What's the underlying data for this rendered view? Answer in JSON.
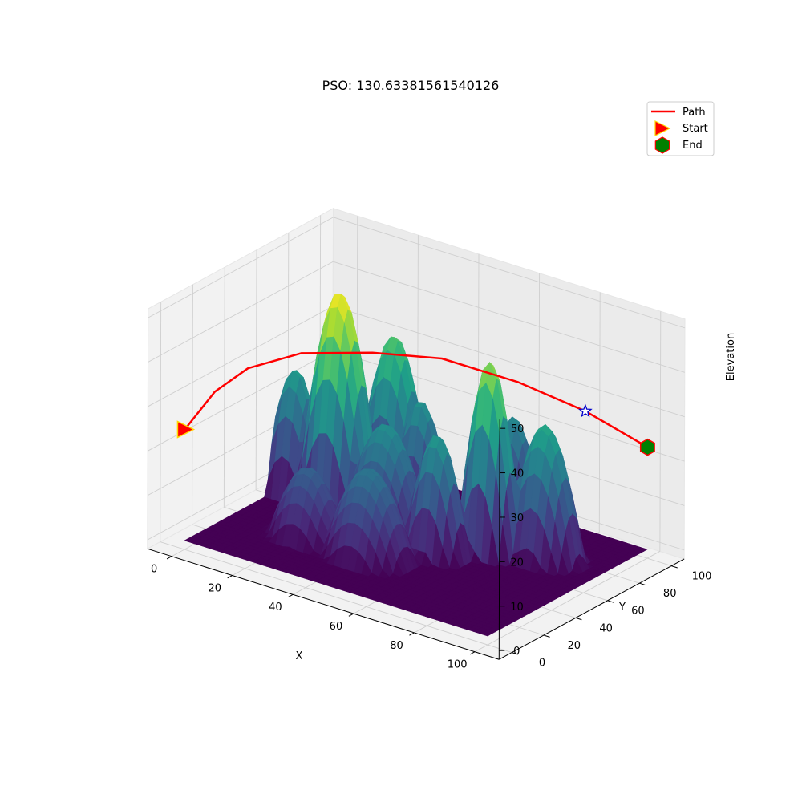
{
  "chart_data": {
    "type": "surface3d",
    "title": "PSO: 130.63381561540126",
    "xlabel": "X",
    "ylabel": "Y",
    "zlabel": "Elevation",
    "xlim": [
      0,
      100
    ],
    "ylim": [
      0,
      100
    ],
    "zlim": [
      0,
      50
    ],
    "x_ticks": [
      0,
      20,
      40,
      60,
      80,
      100
    ],
    "y_ticks": [
      0,
      20,
      40,
      60,
      80,
      100
    ],
    "z_ticks": [
      0,
      10,
      20,
      30,
      40,
      50
    ],
    "colormap": "viridis",
    "grid": true,
    "legend_position": "top-right",
    "legend": [
      {
        "label": "Path",
        "marker": "line",
        "color": "#ff0000"
      },
      {
        "label": "Start",
        "marker": "triangle-right",
        "color": "#ff0000",
        "edge": "#ffd700"
      },
      {
        "label": "End",
        "marker": "hexagon",
        "color": "#008000",
        "edge": "#ff0000"
      }
    ],
    "peaks": [
      {
        "x": 22,
        "y": 55,
        "height": 50,
        "radius": 13
      },
      {
        "x": 28,
        "y": 78,
        "height": 37,
        "radius": 12
      },
      {
        "x": 5,
        "y": 60,
        "height": 28,
        "radius": 10
      },
      {
        "x": 40,
        "y": 50,
        "height": 25,
        "radius": 14
      },
      {
        "x": 68,
        "y": 62,
        "height": 43,
        "radius": 10
      },
      {
        "x": 62,
        "y": 88,
        "height": 24,
        "radius": 10
      },
      {
        "x": 82,
        "y": 70,
        "height": 30,
        "radius": 12
      },
      {
        "x": 58,
        "y": 48,
        "height": 27,
        "radius": 10
      },
      {
        "x": 40,
        "y": 72,
        "height": 26,
        "radius": 10
      },
      {
        "x": 45,
        "y": 30,
        "height": 20,
        "radius": 14
      },
      {
        "x": 25,
        "y": 30,
        "height": 16,
        "radius": 12
      }
    ],
    "path": {
      "color": "#ff0000",
      "points": [
        [
          0,
          0,
          25
        ],
        [
          2,
          15,
          31
        ],
        [
          5,
          30,
          34
        ],
        [
          12,
          50,
          35
        ],
        [
          25,
          70,
          34
        ],
        [
          40,
          85,
          33
        ],
        [
          60,
          95,
          30
        ],
        [
          80,
          99,
          27
        ],
        [
          100,
          100,
          23
        ]
      ]
    },
    "start": {
      "x": 0,
      "y": 0,
      "z": 25
    },
    "waypoint": {
      "x": 80,
      "y": 99,
      "z": 27
    },
    "end": {
      "x": 100,
      "y": 100,
      "z": 23
    }
  }
}
